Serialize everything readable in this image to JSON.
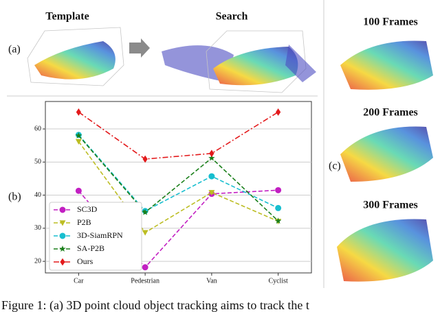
{
  "panel_labels": [
    "(a)",
    "(b)",
    "(c)"
  ],
  "panel_a": {
    "template_title": "Template",
    "search_title": "Search"
  },
  "panel_c": {
    "frame_titles": [
      "100 Frames",
      "200 Frames",
      "300 Frames"
    ]
  },
  "caption": "Figure 1: (a) 3D point cloud object tracking aims to track the t",
  "chart_data": {
    "type": "line",
    "categories": [
      "Car",
      "Pedestrian",
      "Van",
      "Cyclist"
    ],
    "ylim": [
      16.5,
      68.3
    ],
    "yticks": [
      20,
      30,
      40,
      50,
      60
    ],
    "grid": true,
    "legend": "lower left",
    "series": [
      {
        "name": "SC3D",
        "color": "#c21fc2",
        "marker": "circle",
        "dash": "6 3",
        "values": [
          41.3,
          18.2,
          40.4,
          41.5
        ]
      },
      {
        "name": "P2B",
        "color": "#bcbd22",
        "marker": "triangle-down",
        "dash": "6 3",
        "values": [
          56.2,
          28.7,
          40.8,
          32.1
        ]
      },
      {
        "name": "3D-SiamRPN",
        "color": "#17becf",
        "marker": "circle",
        "dash": "6 3",
        "values": [
          58.2,
          35.2,
          45.7,
          36.1
        ]
      },
      {
        "name": "SA-P2B",
        "color": "#1a7f1a",
        "marker": "star",
        "dash": "6 3",
        "values": [
          58.0,
          34.8,
          51.2,
          32.2
        ]
      },
      {
        "name": "Ours",
        "color": "#e31a1c",
        "marker": "diamond",
        "dash": "8 3 2 3",
        "values": [
          65.1,
          50.9,
          52.6,
          65.1
        ]
      }
    ]
  }
}
